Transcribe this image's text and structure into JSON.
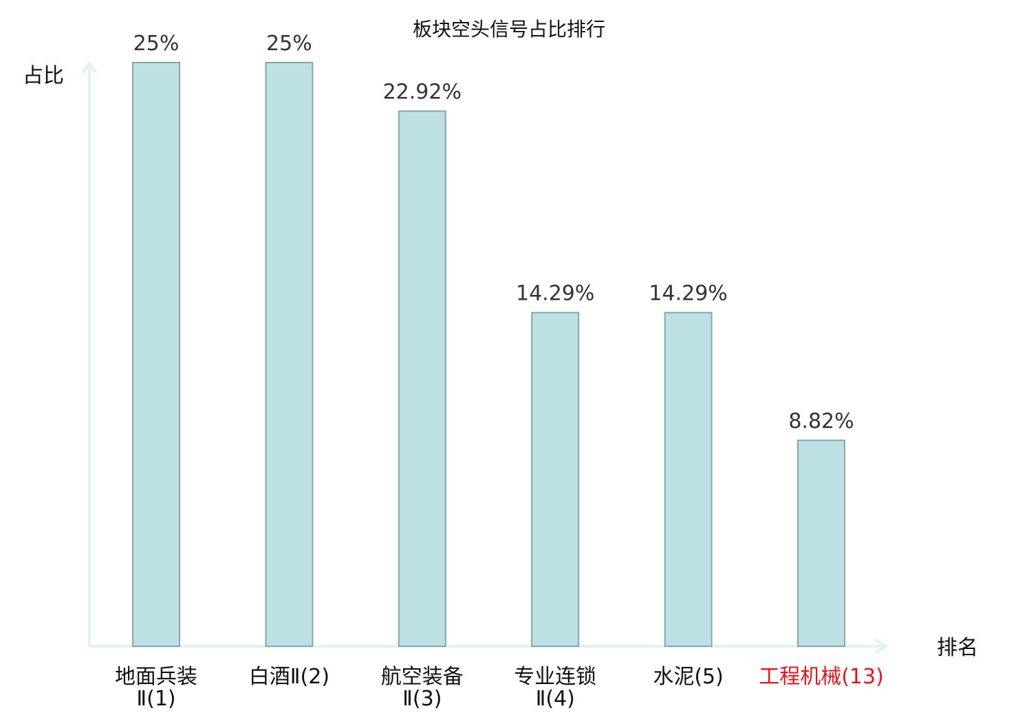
{
  "chart_data": {
    "type": "bar",
    "title": "板块空头信号占比排行",
    "ylabel": "占比",
    "xlabel": "排名",
    "categories": [
      [
        "地面兵装",
        "Ⅱ(1)"
      ],
      [
        "白酒Ⅱ(2)"
      ],
      [
        "航空装备",
        "Ⅱ(3)"
      ],
      [
        "专业连锁",
        "Ⅱ(4)"
      ],
      [
        "水泥(5)"
      ],
      [
        "工程机械(13)"
      ]
    ],
    "values": [
      25,
      25,
      22.92,
      14.29,
      14.29,
      8.82
    ],
    "value_labels": [
      "25%",
      "25%",
      "22.92%",
      "14.29%",
      "14.29%",
      "8.82%"
    ],
    "highlight_index": 5,
    "ylim": [
      0,
      25
    ],
    "grid": false,
    "colors": {
      "bar_fill": "#bce0e3",
      "bar_stroke": "#86a6aa",
      "axis": "#e0f3f1",
      "highlight_text": "#e8141c",
      "normal_text": "#111111"
    }
  }
}
